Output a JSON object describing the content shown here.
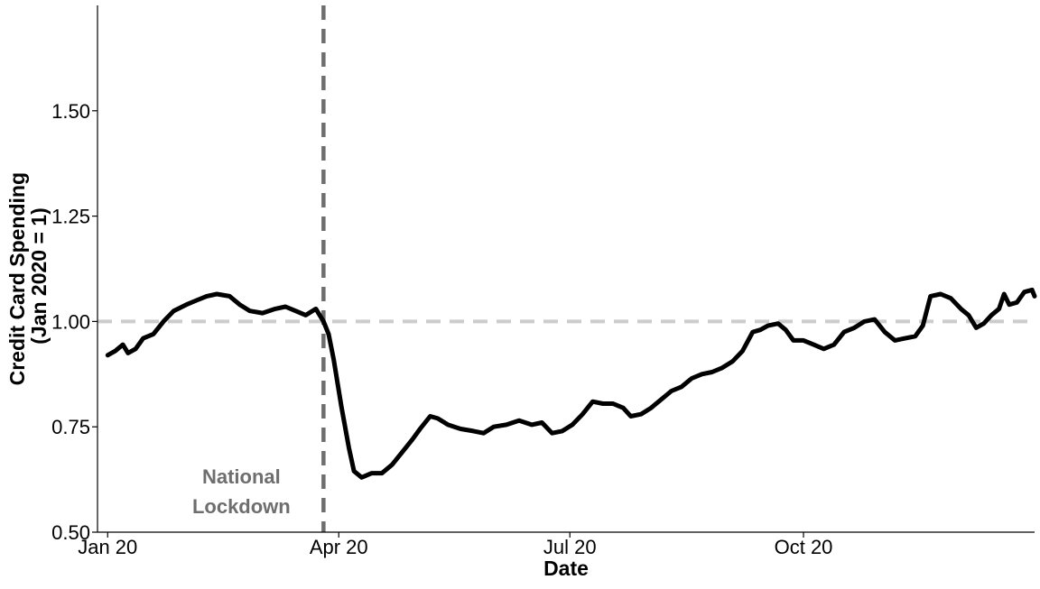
{
  "chart_data": {
    "type": "line",
    "xlabel": "Date",
    "ylabel_lines": [
      "Credit Card Spending",
      "(Jan 2020 = 1)"
    ],
    "ylim": [
      0.5,
      1.75
    ],
    "y_ticks": [
      0.5,
      0.75,
      1.0,
      1.25,
      1.5
    ],
    "y_tick_labels": [
      "0.50",
      "0.75",
      "1.00",
      "1.25",
      "1.50"
    ],
    "x_range": [
      "2019-12-28",
      "2020-12-31"
    ],
    "x_ticks": [
      "2020-01-01",
      "2020-04-01",
      "2020-07-01",
      "2020-10-01"
    ],
    "x_tick_labels": [
      "Jan 20",
      "Apr 20",
      "Jul 20",
      "Oct 20"
    ],
    "grid": false,
    "reference_line": {
      "y": 1.0,
      "style": "dashed",
      "color": "#cccccc"
    },
    "event_line": {
      "x": "2020-03-26",
      "style": "dashed",
      "color": "#6e6e6e"
    },
    "annotation": {
      "lines": [
        "National",
        "Lockdown"
      ],
      "color": "#6e6e6e"
    },
    "series": [
      {
        "color": "#000000",
        "points": [
          [
            "2020-01-01",
            0.92
          ],
          [
            "2020-01-04",
            0.93
          ],
          [
            "2020-01-07",
            0.945
          ],
          [
            "2020-01-09",
            0.925
          ],
          [
            "2020-01-12",
            0.935
          ],
          [
            "2020-01-15",
            0.96
          ],
          [
            "2020-01-19",
            0.97
          ],
          [
            "2020-01-23",
            1.0
          ],
          [
            "2020-01-27",
            1.025
          ],
          [
            "2020-02-01",
            1.04
          ],
          [
            "2020-02-05",
            1.05
          ],
          [
            "2020-02-09",
            1.06
          ],
          [
            "2020-02-13",
            1.065
          ],
          [
            "2020-02-18",
            1.06
          ],
          [
            "2020-02-22",
            1.04
          ],
          [
            "2020-02-26",
            1.025
          ],
          [
            "2020-03-02",
            1.02
          ],
          [
            "2020-03-07",
            1.03
          ],
          [
            "2020-03-11",
            1.035
          ],
          [
            "2020-03-15",
            1.025
          ],
          [
            "2020-03-19",
            1.015
          ],
          [
            "2020-03-23",
            1.03
          ],
          [
            "2020-03-26",
            1.0
          ],
          [
            "2020-03-28",
            0.97
          ],
          [
            "2020-03-30",
            0.91
          ],
          [
            "2020-04-02",
            0.8
          ],
          [
            "2020-04-05",
            0.7
          ],
          [
            "2020-04-07",
            0.645
          ],
          [
            "2020-04-10",
            0.63
          ],
          [
            "2020-04-14",
            0.64
          ],
          [
            "2020-04-18",
            0.64
          ],
          [
            "2020-04-22",
            0.66
          ],
          [
            "2020-04-26",
            0.69
          ],
          [
            "2020-04-30",
            0.72
          ],
          [
            "2020-05-03",
            0.745
          ],
          [
            "2020-05-07",
            0.775
          ],
          [
            "2020-05-10",
            0.77
          ],
          [
            "2020-05-14",
            0.755
          ],
          [
            "2020-05-19",
            0.745
          ],
          [
            "2020-05-24",
            0.74
          ],
          [
            "2020-05-28",
            0.735
          ],
          [
            "2020-06-01",
            0.75
          ],
          [
            "2020-06-06",
            0.755
          ],
          [
            "2020-06-11",
            0.765
          ],
          [
            "2020-06-16",
            0.755
          ],
          [
            "2020-06-20",
            0.76
          ],
          [
            "2020-06-24",
            0.735
          ],
          [
            "2020-06-28",
            0.74
          ],
          [
            "2020-07-02",
            0.755
          ],
          [
            "2020-07-06",
            0.78
          ],
          [
            "2020-07-10",
            0.81
          ],
          [
            "2020-07-14",
            0.805
          ],
          [
            "2020-07-18",
            0.805
          ],
          [
            "2020-07-22",
            0.795
          ],
          [
            "2020-07-25",
            0.775
          ],
          [
            "2020-07-29",
            0.78
          ],
          [
            "2020-08-02",
            0.795
          ],
          [
            "2020-08-06",
            0.815
          ],
          [
            "2020-08-10",
            0.835
          ],
          [
            "2020-08-14",
            0.845
          ],
          [
            "2020-08-18",
            0.865
          ],
          [
            "2020-08-22",
            0.875
          ],
          [
            "2020-08-26",
            0.88
          ],
          [
            "2020-08-30",
            0.89
          ],
          [
            "2020-09-03",
            0.905
          ],
          [
            "2020-09-07",
            0.93
          ],
          [
            "2020-09-11",
            0.975
          ],
          [
            "2020-09-14",
            0.98
          ],
          [
            "2020-09-17",
            0.99
          ],
          [
            "2020-09-21",
            0.995
          ],
          [
            "2020-09-24",
            0.98
          ],
          [
            "2020-09-27",
            0.955
          ],
          [
            "2020-10-01",
            0.955
          ],
          [
            "2020-10-05",
            0.945
          ],
          [
            "2020-10-09",
            0.935
          ],
          [
            "2020-10-13",
            0.945
          ],
          [
            "2020-10-17",
            0.975
          ],
          [
            "2020-10-21",
            0.985
          ],
          [
            "2020-10-25",
            1.0
          ],
          [
            "2020-10-29",
            1.005
          ],
          [
            "2020-11-02",
            0.975
          ],
          [
            "2020-11-06",
            0.955
          ],
          [
            "2020-11-10",
            0.96
          ],
          [
            "2020-11-14",
            0.965
          ],
          [
            "2020-11-17",
            0.99
          ],
          [
            "2020-11-20",
            1.06
          ],
          [
            "2020-11-24",
            1.065
          ],
          [
            "2020-11-28",
            1.055
          ],
          [
            "2020-12-02",
            1.03
          ],
          [
            "2020-12-05",
            1.015
          ],
          [
            "2020-12-08",
            0.985
          ],
          [
            "2020-12-11",
            0.995
          ],
          [
            "2020-12-14",
            1.015
          ],
          [
            "2020-12-17",
            1.03
          ],
          [
            "2020-12-19",
            1.065
          ],
          [
            "2020-12-21",
            1.04
          ],
          [
            "2020-12-24",
            1.045
          ],
          [
            "2020-12-27",
            1.07
          ],
          [
            "2020-12-30",
            1.075
          ],
          [
            "2020-12-31",
            1.06
          ]
        ]
      }
    ]
  }
}
